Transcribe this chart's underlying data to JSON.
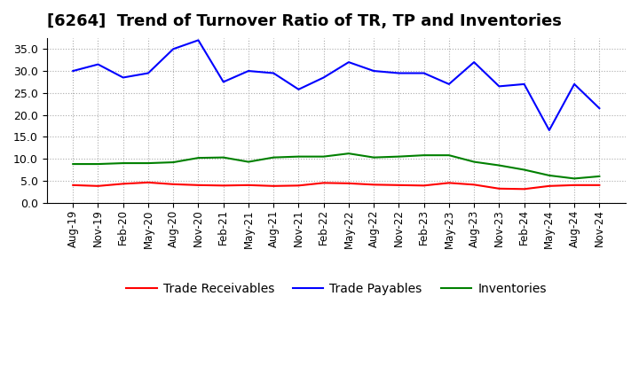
{
  "title": "[6264]  Trend of Turnover Ratio of TR, TP and Inventories",
  "x_labels": [
    "Aug-19",
    "Nov-19",
    "Feb-20",
    "May-20",
    "Aug-20",
    "Nov-20",
    "Feb-21",
    "May-21",
    "Aug-21",
    "Nov-21",
    "Feb-22",
    "May-22",
    "Aug-22",
    "Nov-22",
    "Feb-23",
    "May-23",
    "Aug-23",
    "Nov-23",
    "Feb-24",
    "May-24",
    "Aug-24",
    "Nov-24"
  ],
  "trade_receivables": [
    4.0,
    3.8,
    4.3,
    4.6,
    4.2,
    4.0,
    3.9,
    4.0,
    3.8,
    3.9,
    4.5,
    4.4,
    4.1,
    4.0,
    3.9,
    4.5,
    4.1,
    3.2,
    3.1,
    3.8,
    4.0,
    4.0
  ],
  "trade_payables": [
    30.0,
    31.5,
    28.5,
    29.5,
    35.0,
    37.0,
    27.5,
    30.0,
    29.5,
    25.8,
    28.5,
    32.0,
    30.0,
    29.5,
    29.5,
    27.0,
    32.0,
    26.5,
    27.0,
    16.5,
    27.0,
    21.5
  ],
  "inventories": [
    8.8,
    8.8,
    9.0,
    9.0,
    9.2,
    10.2,
    10.3,
    9.3,
    10.3,
    10.5,
    10.5,
    11.2,
    10.3,
    10.5,
    10.8,
    10.8,
    9.3,
    8.5,
    7.5,
    6.2,
    5.5,
    6.0
  ],
  "tr_color": "#ff0000",
  "tp_color": "#0000ff",
  "inv_color": "#008000",
  "tr_label": "Trade Receivables",
  "tp_label": "Trade Payables",
  "inv_label": "Inventories",
  "ylim": [
    0.0,
    37.5
  ],
  "yticks": [
    0.0,
    5.0,
    10.0,
    15.0,
    20.0,
    25.0,
    30.0,
    35.0
  ],
  "background_color": "#ffffff",
  "grid_color": "#aaaaaa",
  "title_fontsize": 13
}
